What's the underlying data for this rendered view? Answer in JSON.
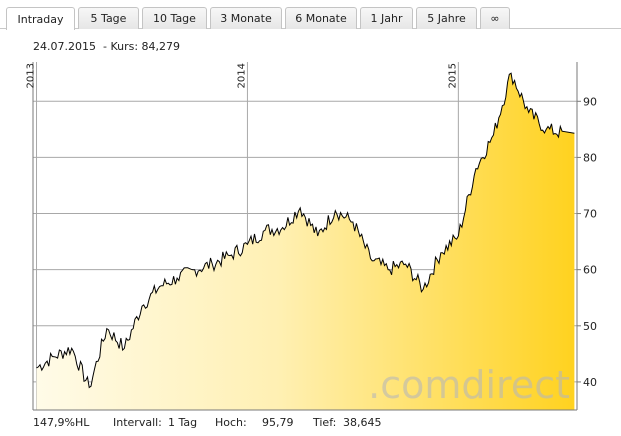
{
  "tabs": [
    {
      "label": "Intraday",
      "active": true
    },
    {
      "label": "5 Tage"
    },
    {
      "label": "10 Tage"
    },
    {
      "label": "3 Monate"
    },
    {
      "label": "6 Monate"
    },
    {
      "label": "1 Jahr"
    },
    {
      "label": "5 Jahre"
    },
    {
      "label": "∞"
    }
  ],
  "info": {
    "date": "24.07.2015",
    "kurs_label": "- Kurs:",
    "kurs_value": "84,279"
  },
  "watermark": ".comdirect",
  "footer": {
    "hl": "147,9%HL",
    "intervall_label": "Intervall:",
    "intervall_value": "1 Tag",
    "hoch_label": "Hoch:",
    "hoch_value": "95,79",
    "tief_label": "Tief:",
    "tief_value": "38,645"
  },
  "colors": {
    "fill_light": "#fffbe6",
    "fill_dark": "#ffd21f",
    "line": "#000000",
    "grid": "#a8a8a8"
  },
  "chart_data": {
    "type": "area",
    "y_ticks": [
      40,
      50,
      60,
      70,
      80,
      90
    ],
    "ylim": [
      35,
      97
    ],
    "year_labels": [
      "2013",
      "2014",
      "2015"
    ],
    "x": [
      "2013-01",
      "2013-02",
      "2013-03",
      "2013-04",
      "2013-05",
      "2013-06",
      "2013-07",
      "2013-08",
      "2013-09",
      "2013-10",
      "2013-11",
      "2013-12",
      "2014-01",
      "2014-02",
      "2014-03",
      "2014-04",
      "2014-05",
      "2014-06",
      "2014-07",
      "2014-08",
      "2014-09",
      "2014-10",
      "2014-11",
      "2014-12",
      "2015-01",
      "2015-02",
      "2015-03",
      "2015-04",
      "2015-05",
      "2015-06",
      "2015-07"
    ],
    "y": [
      42.5,
      44.5,
      46,
      39,
      49.5,
      46,
      53.5,
      57,
      58.5,
      60,
      61,
      62.5,
      64.5,
      67,
      67.5,
      71,
      66,
      70.5,
      68.5,
      62,
      60,
      61,
      56.5,
      63,
      66,
      78,
      84,
      95,
      88,
      85,
      84.3
    ]
  }
}
